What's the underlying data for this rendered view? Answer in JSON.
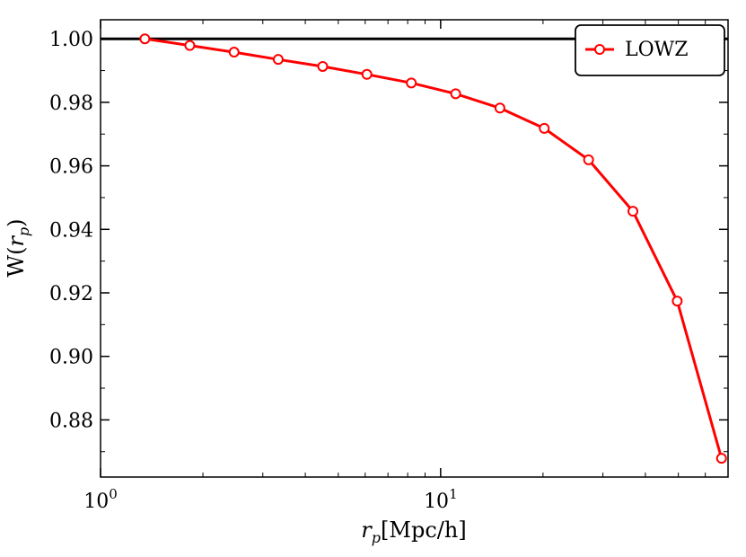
{
  "chart_data": {
    "type": "line",
    "xscale": "log",
    "xlim": [
      1,
      70
    ],
    "ylim": [
      0.862,
      1.006
    ],
    "xticks": [
      {
        "value": 1,
        "base": "10",
        "exp": "0"
      },
      {
        "value": 10,
        "base": "10",
        "exp": "1"
      }
    ],
    "yticks": [
      {
        "value": 0.88,
        "label": "0.88"
      },
      {
        "value": 0.9,
        "label": "0.90"
      },
      {
        "value": 0.92,
        "label": "0.92"
      },
      {
        "value": 0.94,
        "label": "0.94"
      },
      {
        "value": 0.96,
        "label": "0.96"
      },
      {
        "value": 0.98,
        "label": "0.98"
      },
      {
        "value": 1.0,
        "label": "1.00"
      }
    ],
    "xlabel": {
      "var": "r",
      "sub": "p",
      "rest": "[Mpc/h]"
    },
    "ylabel": {
      "prefix": "W(",
      "var": "r",
      "sub": "p",
      "suffix": ")"
    },
    "reference_line": {
      "y": 1.0,
      "color": "#000000"
    },
    "legend": {
      "position": "top-right"
    },
    "grid": false,
    "series": [
      {
        "name": "LOWZ",
        "color": "#ff0000",
        "marker": "open-circle",
        "x": [
          1.35,
          1.83,
          2.47,
          3.33,
          4.5,
          6.07,
          8.2,
          11.07,
          14.94,
          20.17,
          27.23,
          36.76,
          49.62,
          66.98
        ],
        "y": [
          1.0,
          0.9979,
          0.9958,
          0.9935,
          0.9913,
          0.9888,
          0.9861,
          0.9827,
          0.9782,
          0.9718,
          0.9619,
          0.9457,
          0.9174,
          0.8679
        ]
      }
    ]
  }
}
